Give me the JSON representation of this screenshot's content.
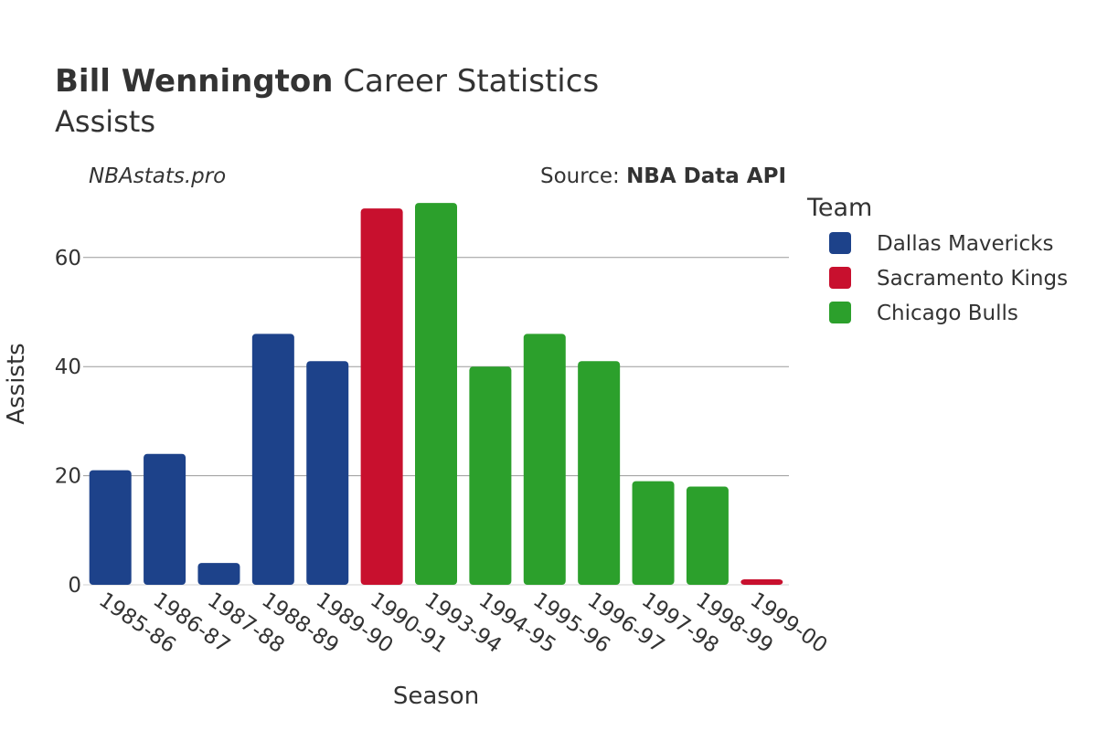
{
  "title": {
    "bold": "Bill Wennington",
    "rest": " Career Statistics",
    "subtitle": "Assists"
  },
  "watermark": "NBAstats.pro",
  "source": {
    "prefix": "Source: ",
    "name": "NBA Data API"
  },
  "chart_data": {
    "type": "bar",
    "xlabel": "Season",
    "ylabel": "Assists",
    "ylim": [
      0,
      72
    ],
    "yticks": [
      0,
      20,
      40,
      60
    ],
    "grid": true,
    "legend_title": "Team",
    "legend_position": "right",
    "categories": [
      "1985-86",
      "1986-87",
      "1987-88",
      "1988-89",
      "1989-90",
      "1990-91",
      "1993-94",
      "1994-95",
      "1995-96",
      "1996-97",
      "1997-98",
      "1998-99",
      "1999-00"
    ],
    "values": [
      21,
      24,
      4,
      46,
      41,
      69,
      70,
      40,
      46,
      41,
      19,
      18,
      1
    ],
    "teams": [
      "Dallas Mavericks",
      "Dallas Mavericks",
      "Dallas Mavericks",
      "Dallas Mavericks",
      "Dallas Mavericks",
      "Sacramento Kings",
      "Chicago Bulls",
      "Chicago Bulls",
      "Chicago Bulls",
      "Chicago Bulls",
      "Chicago Bulls",
      "Chicago Bulls",
      "Sacramento Kings"
    ],
    "series": [
      {
        "name": "Dallas Mavericks",
        "color": "#1d428a"
      },
      {
        "name": "Sacramento Kings",
        "color": "#c8102e"
      },
      {
        "name": "Chicago Bulls",
        "color": "#2ca02c"
      }
    ]
  }
}
